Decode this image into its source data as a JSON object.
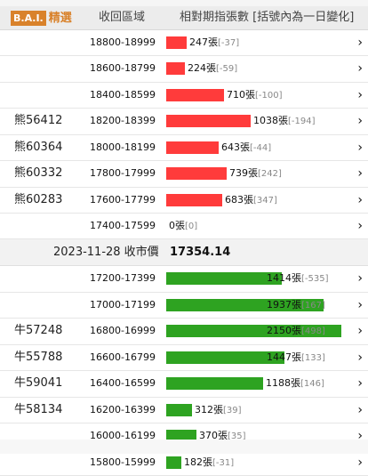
{
  "header": {
    "logo_bai": "B.A.I.",
    "logo_name": "精選",
    "col_range": "收回區域",
    "col_change": "相對期指張數 [括號內為一日變化]"
  },
  "market": {
    "date": "2023-11-28 收市價",
    "close": "17354.14"
  },
  "bear_rows": [
    {
      "label": "",
      "range": "18800-18999",
      "count": "247張",
      "change": "[-37]",
      "value": 247
    },
    {
      "label": "",
      "range": "18600-18799",
      "count": "224張",
      "change": "[-59]",
      "value": 224
    },
    {
      "label": "",
      "range": "18400-18599",
      "count": "710張",
      "change": "[-100]",
      "value": 710
    },
    {
      "label": "熊56412",
      "range": "18200-18399",
      "count": "1038張",
      "change": "[-194]",
      "value": 1038
    },
    {
      "label": "熊60364",
      "range": "18000-18199",
      "count": "643張",
      "change": "[-44]",
      "value": 643
    },
    {
      "label": "熊60332",
      "range": "17800-17999",
      "count": "739張",
      "change": "[242]",
      "value": 739
    },
    {
      "label": "熊60283",
      "range": "17600-17799",
      "count": "683張",
      "change": "[347]",
      "value": 683
    },
    {
      "label": "",
      "range": "17400-17599",
      "count": "0張",
      "change": "[0]",
      "value": 0
    }
  ],
  "bull_rows": [
    {
      "label": "",
      "range": "17200-17399",
      "count": "1414張",
      "change": "[-535]",
      "value": 1414
    },
    {
      "label": "",
      "range": "17000-17199",
      "count": "1937張",
      "change": "[167]",
      "value": 1937
    },
    {
      "label": "牛57248",
      "range": "16800-16999",
      "count": "2150張",
      "change": "[498]",
      "value": 2150
    },
    {
      "label": "牛55788",
      "range": "16600-16799",
      "count": "1447張",
      "change": "[133]",
      "value": 1447
    },
    {
      "label": "牛59041",
      "range": "16400-16599",
      "count": "1188張",
      "change": "[146]",
      "value": 1188
    },
    {
      "label": "牛58134",
      "range": "16200-16399",
      "count": "312張",
      "change": "[39]",
      "value": 312
    },
    {
      "label": "",
      "range": "16000-16199",
      "count": "370張",
      "change": "[35]",
      "value": 370
    },
    {
      "label": "",
      "range": "15800-15999",
      "count": "182張",
      "change": "[-31]",
      "value": 182
    }
  ],
  "arrow_glyph": "›",
  "colors": {
    "bear_bar": "#ff3b3b",
    "bull_bar": "#2ea321",
    "logo": "#d9822b"
  },
  "icons": {
    "row_arrow": "chevron-right-icon"
  }
}
